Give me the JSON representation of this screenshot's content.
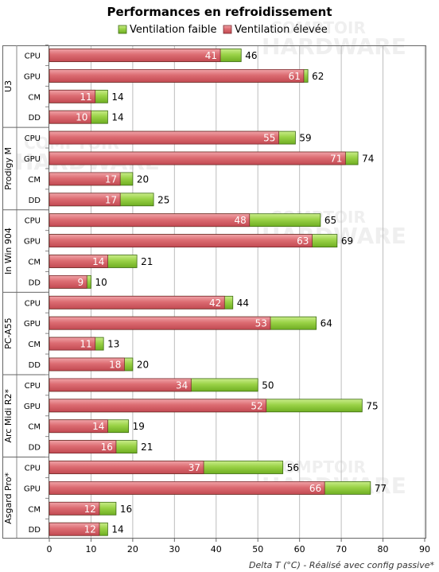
{
  "chart_data": {
    "type": "bar",
    "orientation": "horizontal",
    "title": "Performances en refroidissement",
    "legend": [
      "Ventilation faible",
      "Ventilation élevée"
    ],
    "legend_position": "top",
    "xlabel": "Delta T (°C) - Réalisé avec config passive*",
    "xlim": [
      0,
      90
    ],
    "xticks": [
      "0",
      "10",
      "20",
      "30",
      "40",
      "50",
      "60",
      "70",
      "80",
      "90"
    ],
    "grid": true,
    "colors": {
      "faible": "#8cc63f",
      "elevee": "#d9646a"
    },
    "groups": [
      {
        "name": "U3",
        "rows": [
          {
            "label": "CPU",
            "elevee": 41,
            "faible": 46
          },
          {
            "label": "GPU",
            "elevee": 61,
            "faible": 62
          },
          {
            "label": "CM",
            "elevee": 11,
            "faible": 14
          },
          {
            "label": "DD",
            "elevee": 10,
            "faible": 14
          }
        ]
      },
      {
        "name": "Prodigy M",
        "rows": [
          {
            "label": "CPU",
            "elevee": 55,
            "faible": 59
          },
          {
            "label": "GPU",
            "elevee": 71,
            "faible": 74
          },
          {
            "label": "CM",
            "elevee": 17,
            "faible": 20
          },
          {
            "label": "DD",
            "elevee": 17,
            "faible": 25
          }
        ]
      },
      {
        "name": "In Win 904",
        "rows": [
          {
            "label": "CPU",
            "elevee": 48,
            "faible": 65
          },
          {
            "label": "GPU",
            "elevee": 63,
            "faible": 69
          },
          {
            "label": "CM",
            "elevee": 14,
            "faible": 21
          },
          {
            "label": "DD",
            "elevee": 9,
            "faible": 10
          }
        ]
      },
      {
        "name": "PC-A55",
        "rows": [
          {
            "label": "CPU",
            "elevee": 42,
            "faible": 44
          },
          {
            "label": "GPU",
            "elevee": 53,
            "faible": 64
          },
          {
            "label": "CM",
            "elevee": 11,
            "faible": 13
          },
          {
            "label": "DD",
            "elevee": 18,
            "faible": 20
          }
        ]
      },
      {
        "name": "Arc Midi R2*",
        "rows": [
          {
            "label": "CPU",
            "elevee": 34,
            "faible": 50
          },
          {
            "label": "GPU",
            "elevee": 52,
            "faible": 75
          },
          {
            "label": "CM",
            "elevee": 14,
            "faible": 19
          },
          {
            "label": "DD",
            "elevee": 16,
            "faible": 21
          }
        ]
      },
      {
        "name": "Asgard Pro*",
        "rows": [
          {
            "label": "CPU",
            "elevee": 37,
            "faible": 56
          },
          {
            "label": "GPU",
            "elevee": 66,
            "faible": 77
          },
          {
            "label": "CM",
            "elevee": 12,
            "faible": 16
          },
          {
            "label": "DD",
            "elevee": 12,
            "faible": 14
          }
        ]
      }
    ]
  },
  "watermark": {
    "line1": "COMPTOIR",
    "line2": "HARDWARE"
  }
}
